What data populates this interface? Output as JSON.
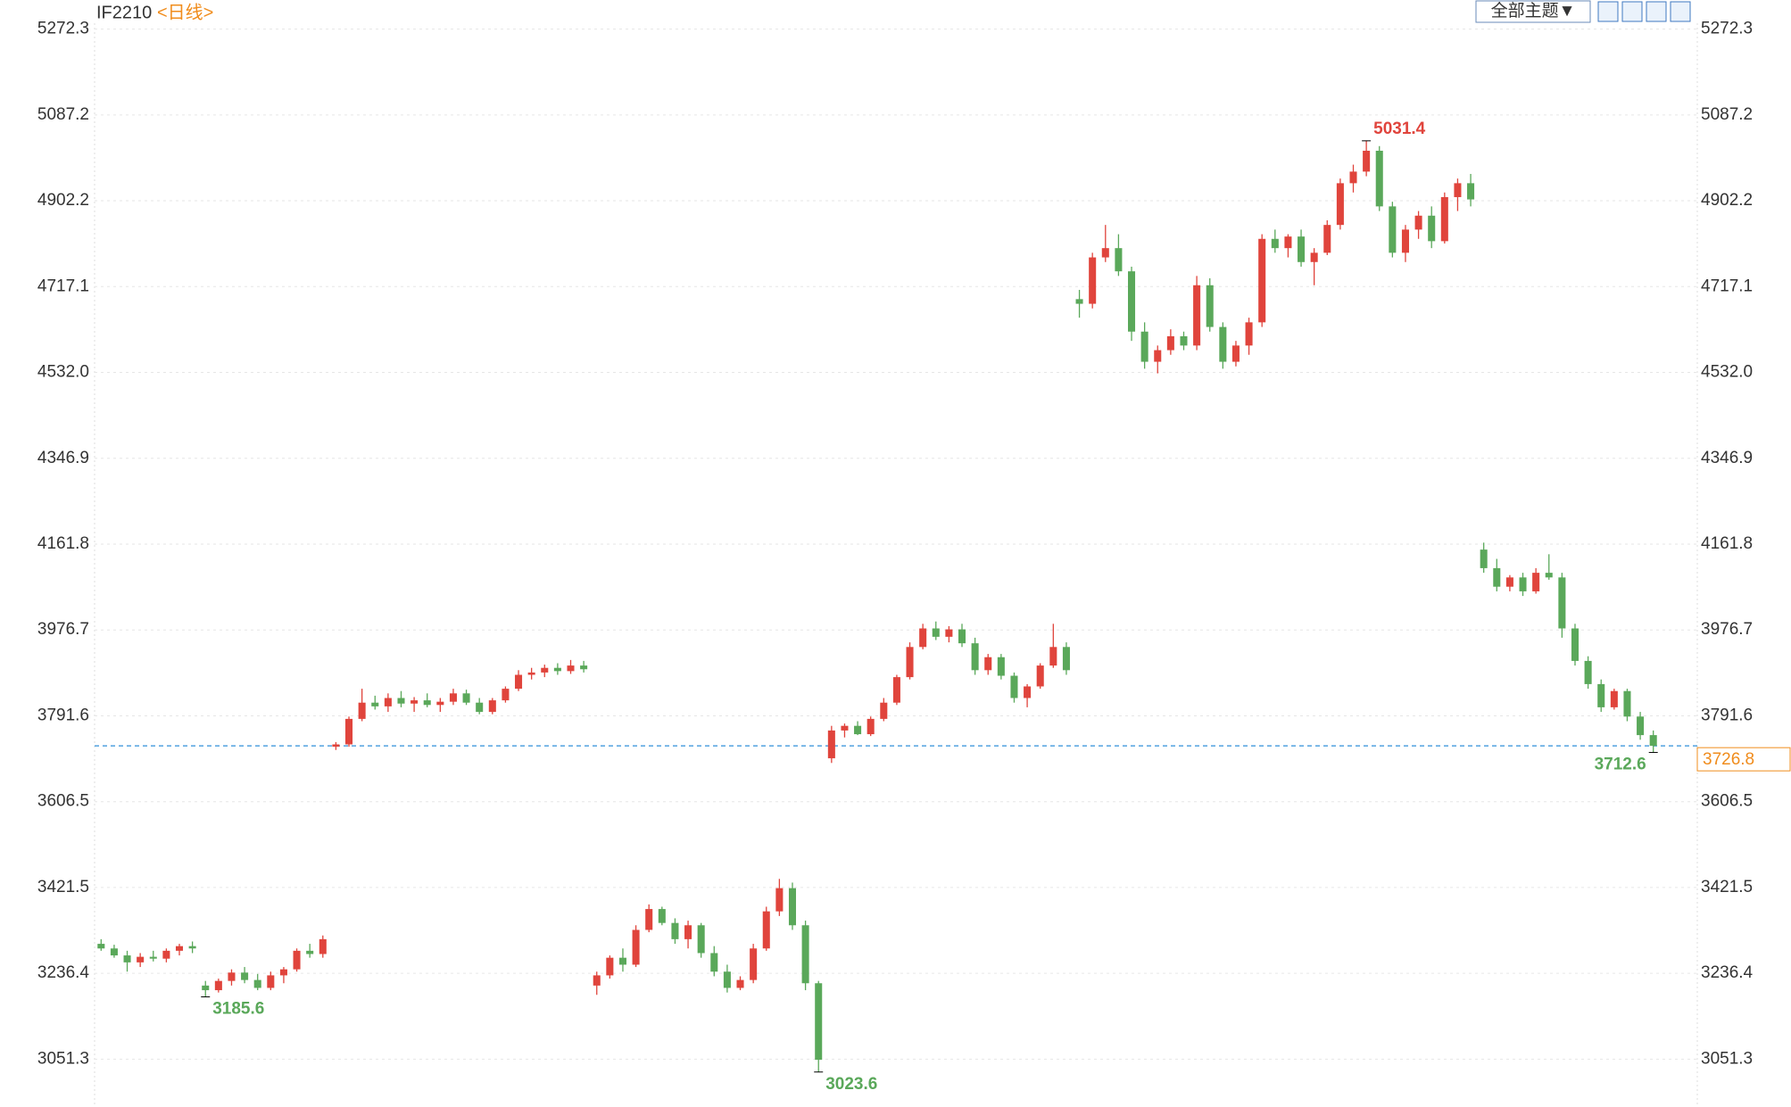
{
  "chart_data": {
    "type": "candlestick",
    "symbol": "IF2210",
    "period": "<日线>",
    "theme_button": "全部主题▼",
    "up_color": "#e0443c",
    "down_color": "#5aa85a",
    "grid": true,
    "ylim": [
      2952,
      5285
    ],
    "yticks": [
      5272.3,
      5087.2,
      4902.2,
      4717.1,
      {
        "value": 4532,
        "label": "4532.0"
      },
      4346.9,
      4161.8,
      3976.7,
      3791.6,
      3606.5,
      3421.5,
      3236.4,
      3051.3
    ],
    "open": [
      3300,
      3290,
      3275,
      3260,
      3272,
      3268,
      3285,
      3295,
      3210,
      3200,
      3220,
      3238,
      3222,
      3205,
      3232,
      3245,
      3285,
      3278,
      3725,
      3730,
      3785,
      3820,
      3812,
      3830,
      3818,
      3825,
      3815,
      3822,
      3840,
      3820,
      3800,
      3825,
      3850,
      3880,
      3885,
      3895,
      3888,
      3900,
      3210,
      3232,
      3270,
      3255,
      3330,
      3375,
      3345,
      3310,
      3340,
      3280,
      3240,
      3205,
      3222,
      3290,
      3370,
      3420,
      3340,
      3215,
      3700,
      3760,
      3770,
      3752,
      3785,
      3820,
      3875,
      3940,
      3980,
      3962,
      3978,
      3948,
      3890,
      3918,
      3878,
      3830,
      3855,
      3900,
      3940,
      4690,
      4680,
      4780,
      4800,
      4750,
      4620,
      4555,
      4580,
      4610,
      4590,
      4720,
      4630,
      4555,
      4590,
      4640,
      4820,
      4800,
      4825,
      4770,
      4790,
      4850,
      4940,
      4965,
      5010,
      4890,
      4790,
      4840,
      4870,
      4815,
      4910,
      4940,
      4150,
      4110,
      4070,
      4090,
      4060,
      4100,
      4090,
      3980,
      3910,
      3860,
      3810,
      3845,
      3790,
      3750
    ],
    "high": [
      3310,
      3298,
      3285,
      3280,
      3285,
      3290,
      3300,
      3305,
      3220,
      3225,
      3245,
      3250,
      3235,
      3240,
      3250,
      3290,
      3300,
      3318,
      3735,
      3790,
      3850,
      3835,
      3840,
      3845,
      3832,
      3840,
      3830,
      3850,
      3848,
      3830,
      3830,
      3855,
      3890,
      3895,
      3902,
      3905,
      3912,
      3910,
      3240,
      3275,
      3290,
      3340,
      3385,
      3380,
      3355,
      3350,
      3345,
      3295,
      3255,
      3230,
      3300,
      3380,
      3440,
      3432,
      3350,
      3220,
      3770,
      3775,
      3780,
      3790,
      3830,
      3880,
      3950,
      3990,
      3995,
      3985,
      3990,
      3960,
      3925,
      3925,
      3885,
      3860,
      3905,
      3990,
      3950,
      4710,
      4790,
      4850,
      4830,
      4760,
      4640,
      4590,
      4625,
      4620,
      4740,
      4735,
      4640,
      4600,
      4650,
      4830,
      4840,
      4830,
      4840,
      4800,
      4860,
      4950,
      4980,
      5031.4,
      5020,
      4900,
      4850,
      4880,
      4890,
      4920,
      4950,
      4960,
      4165,
      4130,
      4095,
      4100,
      4110,
      4140,
      4100,
      3990,
      3920,
      3870,
      3850,
      3850,
      3800,
      3760
    ],
    "low": [
      3285,
      3270,
      3240,
      3250,
      3262,
      3260,
      3275,
      3280,
      3185.6,
      3195,
      3210,
      3215,
      3200,
      3200,
      3215,
      3240,
      3270,
      3270,
      3718,
      3725,
      3780,
      3805,
      3800,
      3810,
      3800,
      3810,
      3800,
      3815,
      3815,
      3795,
      3795,
      3820,
      3845,
      3870,
      3875,
      3880,
      3882,
      3885,
      3190,
      3225,
      3240,
      3250,
      3325,
      3340,
      3300,
      3290,
      3270,
      3230,
      3195,
      3200,
      3215,
      3285,
      3360,
      3330,
      3200,
      3023.6,
      3690,
      3745,
      3750,
      3748,
      3780,
      3815,
      3870,
      3935,
      3955,
      3950,
      3940,
      3880,
      3880,
      3870,
      3820,
      3810,
      3850,
      3895,
      3880,
      4650,
      4670,
      4770,
      4740,
      4600,
      4540,
      4530,
      4570,
      4580,
      4580,
      4620,
      4540,
      4545,
      4570,
      4630,
      4790,
      4780,
      4760,
      4720,
      4785,
      4840,
      4920,
      4955,
      4880,
      4780,
      4770,
      4820,
      4800,
      4810,
      4880,
      4890,
      4100,
      4060,
      4060,
      4050,
      4055,
      4085,
      3960,
      3900,
      3850,
      3800,
      3805,
      3780,
      3740,
      3712.6
    ],
    "close": [
      3290,
      3275,
      3260,
      3272,
      3268,
      3285,
      3295,
      3290,
      3200,
      3220,
      3238,
      3222,
      3205,
      3232,
      3245,
      3285,
      3278,
      3310,
      3730,
      3785,
      3820,
      3812,
      3830,
      3818,
      3825,
      3815,
      3822,
      3840,
      3820,
      3800,
      3825,
      3850,
      3880,
      3885,
      3895,
      3888,
      3900,
      3892,
      3232,
      3270,
      3255,
      3330,
      3375,
      3345,
      3310,
      3340,
      3280,
      3240,
      3205,
      3222,
      3290,
      3370,
      3420,
      3340,
      3215,
      3050,
      3760,
      3770,
      3752,
      3785,
      3820,
      3875,
      3940,
      3980,
      3962,
      3978,
      3948,
      3890,
      3918,
      3878,
      3830,
      3855,
      3900,
      3940,
      3890,
      4680,
      4780,
      4800,
      4750,
      4620,
      4555,
      4580,
      4610,
      4590,
      4720,
      4630,
      4555,
      4590,
      4640,
      4820,
      4800,
      4825,
      4770,
      4790,
      4850,
      4940,
      4965,
      5010,
      4890,
      4790,
      4840,
      4870,
      4815,
      4910,
      4940,
      4905,
      4110,
      4070,
      4090,
      4060,
      4100,
      4090,
      3980,
      3910,
      3860,
      3810,
      3845,
      3790,
      3750,
      3726.8
    ],
    "high_labels": [
      5031.4
    ],
    "low_labels": [
      3185.6,
      3023.6,
      3712.6
    ],
    "last_price": 3726.8
  }
}
